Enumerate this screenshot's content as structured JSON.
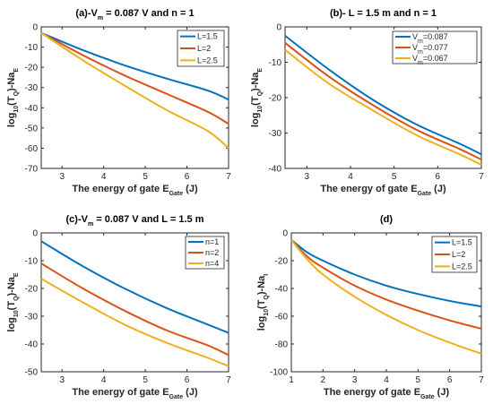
{
  "chart_data": [
    {
      "type": "line",
      "title_parts": [
        "(a)-V",
        "m",
        " = 0.087 V and n = 1"
      ],
      "xlabel_parts": [
        "The energy of gate E",
        "Gate",
        " (J)"
      ],
      "ylabel_parts": [
        "log",
        "10",
        "(T",
        "Q",
        ")-Na",
        "E"
      ],
      "xlim": [
        2.5,
        7
      ],
      "ylim": [
        -70,
        0
      ],
      "xticks": [
        3,
        4,
        5,
        6,
        7
      ],
      "yticks": [
        0,
        -10,
        -20,
        -30,
        -40,
        -50,
        -60,
        -70
      ],
      "legend_loc": "top-right",
      "series": [
        {
          "name": "L=1.5",
          "color": "#0072BD",
          "x": [
            2.5,
            3.5,
            4.5,
            5.5,
            6.5,
            7
          ],
          "y": [
            -3,
            -11.5,
            -19,
            -25.5,
            -31.5,
            -36
          ]
        },
        {
          "name": "L=2",
          "color": "#D95319",
          "x": [
            2.5,
            3.5,
            4.5,
            5.5,
            6.5,
            7
          ],
          "y": [
            -3,
            -14,
            -24,
            -33,
            -42,
            -48
          ]
        },
        {
          "name": "L=2.5",
          "color": "#EDB120",
          "x": [
            2.5,
            3.5,
            4.5,
            5.5,
            6.5,
            7
          ],
          "y": [
            -3,
            -16.5,
            -29,
            -41,
            -51.5,
            -60
          ]
        }
      ]
    },
    {
      "type": "line",
      "title_parts": [
        "(b)- L = 1.5 m and n = 1"
      ],
      "xlabel_parts": [
        "The energy of gate E",
        "Gate",
        " (J)"
      ],
      "ylabel_parts": [
        "log",
        "10",
        "(T",
        "Q",
        ")-Na",
        "E"
      ],
      "xlim": [
        2.5,
        7
      ],
      "ylim": [
        -40,
        0
      ],
      "xticks": [
        3,
        4,
        5,
        6,
        7
      ],
      "yticks": [
        0,
        -10,
        -20,
        -30,
        -40
      ],
      "legend_loc": "top-right",
      "series": [
        {
          "name": "V=0.087",
          "legend_parts": [
            "V",
            "m",
            "=0.087"
          ],
          "color": "#0072BD",
          "x": [
            2.5,
            3.5,
            4.5,
            5.5,
            6.5,
            7
          ],
          "y": [
            -2.5,
            -12,
            -20.5,
            -27.5,
            -33,
            -36
          ]
        },
        {
          "name": "V=0.077",
          "legend_parts": [
            "V",
            "m",
            "=0.077"
          ],
          "color": "#D95319",
          "x": [
            2.5,
            3.5,
            4.5,
            5.5,
            6.5,
            7
          ],
          "y": [
            -4.5,
            -14,
            -22,
            -29,
            -34.5,
            -37.5
          ]
        },
        {
          "name": "V=0.067",
          "legend_parts": [
            "V",
            "m",
            "=0.067"
          ],
          "color": "#EDB120",
          "x": [
            2.5,
            3.5,
            4.5,
            5.5,
            6.5,
            7
          ],
          "y": [
            -6.5,
            -16,
            -23.5,
            -30.5,
            -36,
            -39
          ]
        }
      ]
    },
    {
      "type": "line",
      "title_parts": [
        "(c)-V",
        "m",
        " = 0.087 V and L = 1.5 m"
      ],
      "xlabel_parts": [
        "The energy of gate E",
        "Gate",
        " (J)"
      ],
      "ylabel_parts": [
        "log",
        "10",
        "(T",
        "Q",
        ")-Na",
        "E"
      ],
      "xlim": [
        2.5,
        7
      ],
      "ylim": [
        -50,
        0
      ],
      "xticks": [
        3,
        4,
        5,
        6,
        7
      ],
      "yticks": [
        0,
        -10,
        -20,
        -30,
        -40,
        -50
      ],
      "legend_loc": "top-right",
      "series": [
        {
          "name": "n=1",
          "color": "#0072BD",
          "x": [
            2.5,
            3.5,
            4.5,
            5.5,
            6.5,
            7
          ],
          "y": [
            -3,
            -12,
            -20,
            -27,
            -33,
            -36
          ]
        },
        {
          "name": "n=2",
          "color": "#D95319",
          "x": [
            2.5,
            3.5,
            4.5,
            5.5,
            6.5,
            7
          ],
          "y": [
            -11,
            -20,
            -28,
            -35,
            -40.5,
            -44
          ]
        },
        {
          "name": "n=4",
          "color": "#EDB120",
          "x": [
            2.5,
            3.5,
            4.5,
            5.5,
            6.5,
            7
          ],
          "y": [
            -16.5,
            -25,
            -33,
            -39.5,
            -45,
            -48
          ]
        }
      ]
    },
    {
      "type": "line",
      "title_parts": [
        "(d)"
      ],
      "xlabel_parts": [
        "The energy of gate E",
        "Gate",
        " (J)"
      ],
      "ylabel_parts": [
        "log",
        "10",
        "(T",
        "Q",
        ")-Na",
        "I"
      ],
      "xlim": [
        1,
        7
      ],
      "ylim": [
        -100,
        0
      ],
      "xticks": [
        1,
        2,
        3,
        4,
        5,
        6,
        7
      ],
      "yticks": [
        0,
        -20,
        -40,
        -60,
        -80,
        -100
      ],
      "legend_loc": "top-right",
      "series": [
        {
          "name": "L=1.5",
          "color": "#0072BD",
          "x": [
            1,
            1.5,
            2,
            3,
            4,
            5,
            6,
            7
          ],
          "y": [
            -5,
            -14,
            -20,
            -30,
            -38,
            -44,
            -49,
            -53
          ]
        },
        {
          "name": "L=2",
          "color": "#D95319",
          "x": [
            1,
            1.5,
            2,
            3,
            4,
            5,
            6,
            7
          ],
          "y": [
            -5,
            -17,
            -25,
            -38,
            -48,
            -56,
            -63,
            -69
          ]
        },
        {
          "name": "L=2.5",
          "color": "#EDB120",
          "x": [
            1,
            1.5,
            2,
            3,
            4,
            5,
            6,
            7
          ],
          "y": [
            -5,
            -19,
            -30,
            -46,
            -59,
            -70,
            -79,
            -87
          ]
        }
      ]
    }
  ]
}
